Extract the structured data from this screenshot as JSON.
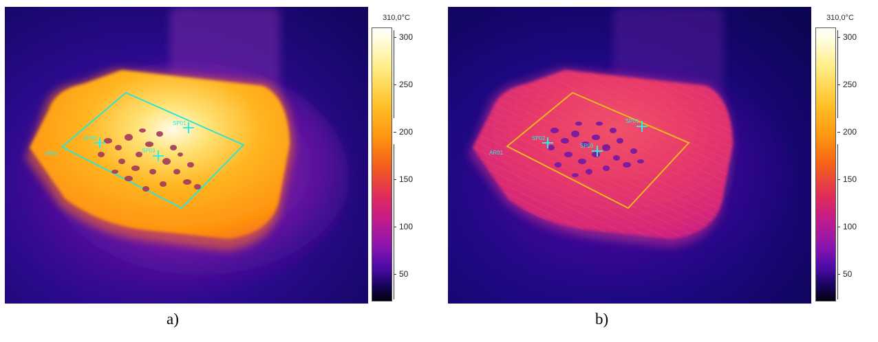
{
  "panels": [
    {
      "caption": "a)",
      "scale_max": "310,0°C",
      "ticks": [
        "300",
        "250",
        "200",
        "150",
        "100",
        "50"
      ],
      "area_label": "AR01",
      "spot_labels": [
        "SP01",
        "SP02",
        "SP03"
      ],
      "roi_color": "#2fe3d2"
    },
    {
      "caption": "b)",
      "scale_max": "310,0°C",
      "ticks": [
        "300",
        "250",
        "200",
        "150",
        "100",
        "50"
      ],
      "area_label": "AR01",
      "spot_labels": [
        "SP01",
        "SP02",
        "SP03"
      ],
      "roi_color": "#f2b81e"
    }
  ]
}
